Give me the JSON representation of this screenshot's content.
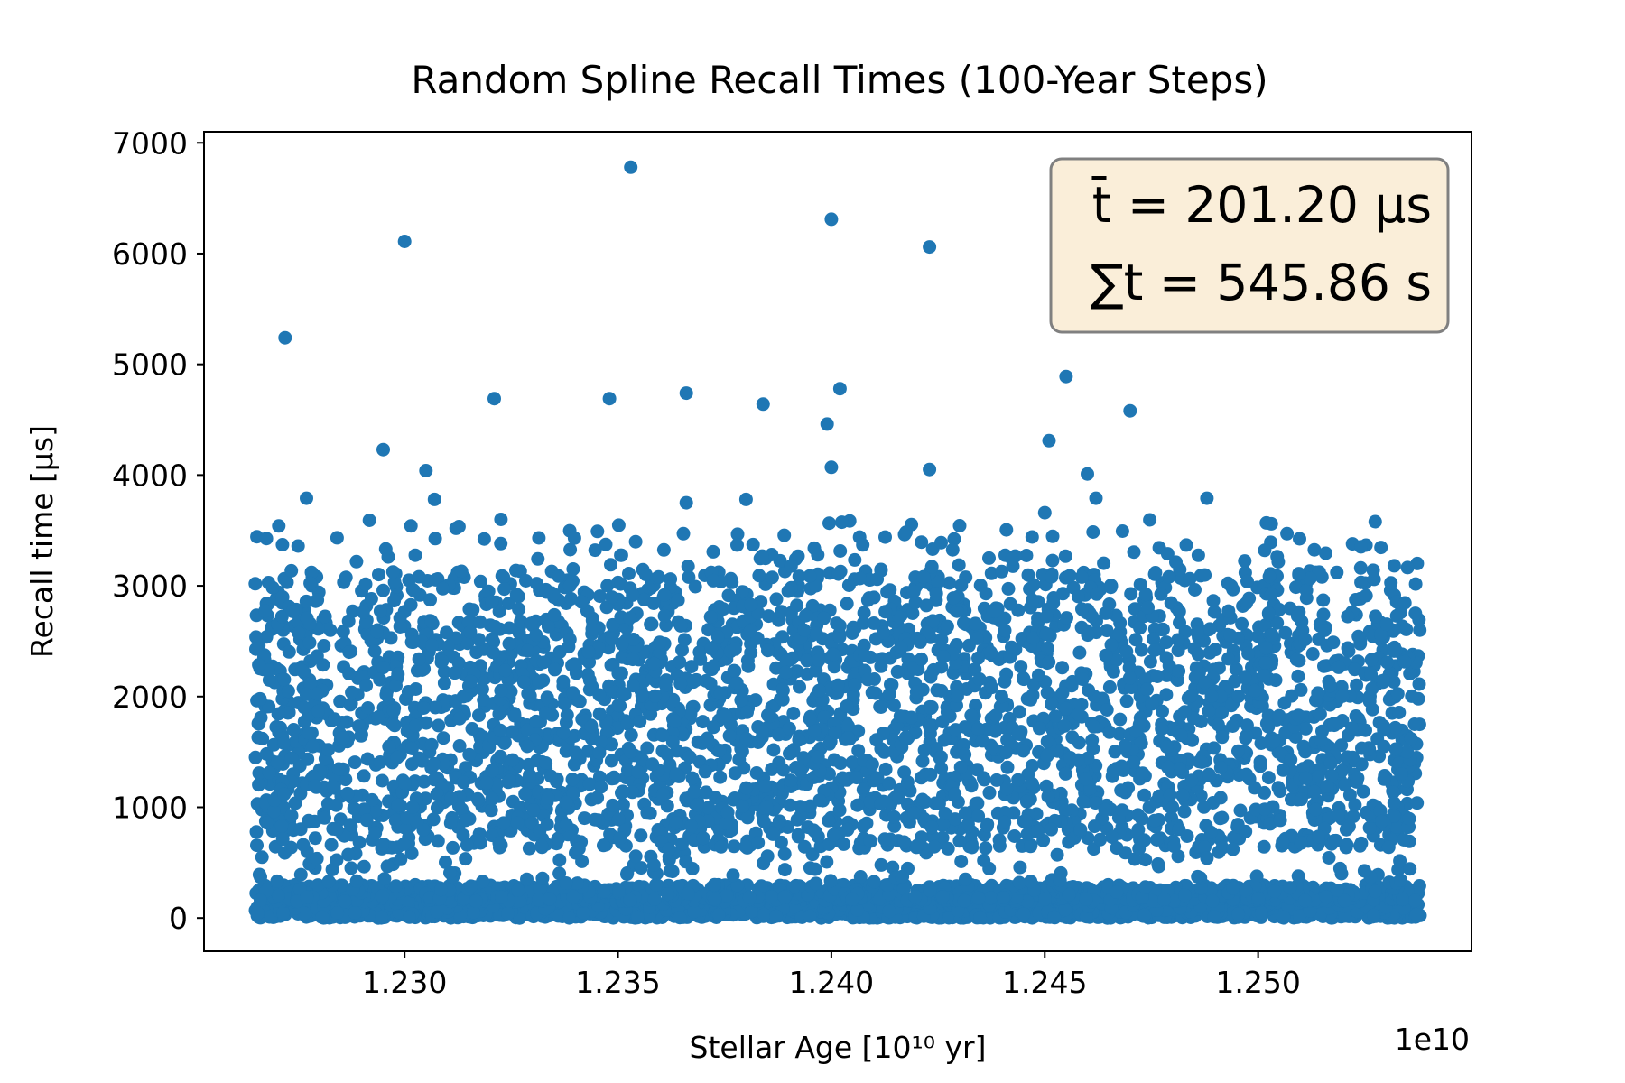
{
  "chart_data": {
    "type": "scatter",
    "title": "Random Spline Recall Times (100-Year Steps)",
    "xlabel": "Stellar Age [10¹⁰ yr]",
    "ylabel": "Recall time [μs]",
    "x_offset_label": "1e10",
    "xlim": [
      1.2253,
      1.255
    ],
    "ylim": [
      -300,
      7100
    ],
    "x_ticks": [
      1.23,
      1.235,
      1.24,
      1.245,
      1.25
    ],
    "x_tick_labels": [
      "1.230",
      "1.235",
      "1.240",
      "1.245",
      "1.250"
    ],
    "y_ticks": [
      0,
      1000,
      2000,
      3000,
      4000,
      5000,
      6000,
      7000
    ],
    "y_tick_labels": [
      "0",
      "1000",
      "2000",
      "3000",
      "4000",
      "5000",
      "6000",
      "7000"
    ],
    "x_data_range": [
      1.2265,
      1.2538
    ],
    "grid": false,
    "annotation": {
      "mean_label": "t̄ = 201.20 μs",
      "total_label": "∑t = 545.86 s",
      "placement": "top-right",
      "background_color": "#f5deb3"
    },
    "series": [
      {
        "color": "#1f77b4",
        "bands": [
          {
            "y_min": 0,
            "y_max": 150,
            "density": "very dense"
          },
          {
            "y_min": 150,
            "y_max": 300,
            "density": "dense"
          },
          {
            "y_min": 300,
            "y_max": 600,
            "density": "sparse"
          },
          {
            "y_min": 620,
            "y_max": 2000,
            "density": "very dense"
          },
          {
            "y_min": 2000,
            "y_max": 2700,
            "density": "dense"
          },
          {
            "y_min": 2700,
            "y_max": 3150,
            "density": "moderate"
          },
          {
            "y_min": 3150,
            "y_max": 3600,
            "density": "sparse"
          }
        ],
        "outliers": [
          {
            "x": 1.2272,
            "y": 5240
          },
          {
            "x": 1.2295,
            "y": 4230
          },
          {
            "x": 1.23,
            "y": 6110
          },
          {
            "x": 1.2305,
            "y": 4040
          },
          {
            "x": 1.2307,
            "y": 3780
          },
          {
            "x": 1.2277,
            "y": 3790
          },
          {
            "x": 1.2321,
            "y": 4690
          },
          {
            "x": 1.2348,
            "y": 4690
          },
          {
            "x": 1.2353,
            "y": 6780
          },
          {
            "x": 1.2366,
            "y": 4740
          },
          {
            "x": 1.2366,
            "y": 3750
          },
          {
            "x": 1.238,
            "y": 3780
          },
          {
            "x": 1.2384,
            "y": 4640
          },
          {
            "x": 1.2399,
            "y": 4460
          },
          {
            "x": 1.24,
            "y": 6310
          },
          {
            "x": 1.24,
            "y": 4070
          },
          {
            "x": 1.2402,
            "y": 4780
          },
          {
            "x": 1.2423,
            "y": 6060
          },
          {
            "x": 1.2423,
            "y": 4050
          },
          {
            "x": 1.2451,
            "y": 4310
          },
          {
            "x": 1.245,
            "y": 3660
          },
          {
            "x": 1.2455,
            "y": 4890
          },
          {
            "x": 1.246,
            "y": 4010
          },
          {
            "x": 1.2462,
            "y": 3790
          },
          {
            "x": 1.247,
            "y": 4580
          },
          {
            "x": 1.2488,
            "y": 3790
          },
          {
            "x": 1.2488,
            "y": 540
          }
        ]
      }
    ]
  }
}
